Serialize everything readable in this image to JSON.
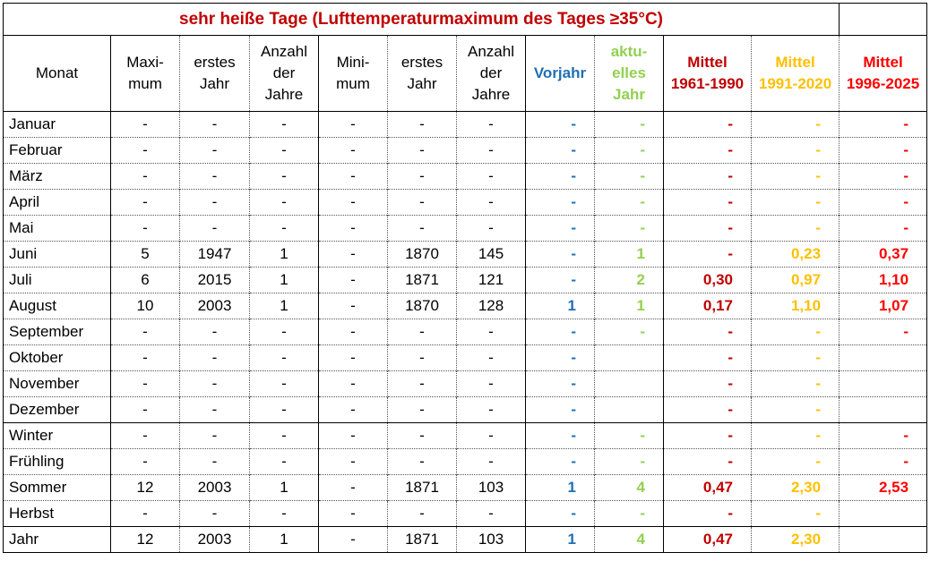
{
  "title": "sehr heiße Tage (Lufttemperaturmaximum des Tages ≥35°C)",
  "table": {
    "headers": [
      "Monat",
      "Maxi-\nmum",
      "erstes\nJahr",
      "Anzahl\nder\nJahre",
      "Mini-\nmum",
      "erstes\nJahr",
      "Anzahl\nder\nJahre",
      "Vorjahr",
      "aktu-\nelles\nJahr",
      "Mittel\n1961-1990",
      "Mittel\n1991-2020",
      "Mittel\n1996-2025"
    ],
    "rows": [
      [
        "Januar",
        "-",
        "-",
        "-",
        "-",
        "-",
        "-",
        "-",
        "-",
        "-",
        "-",
        "-"
      ],
      [
        "Februar",
        "-",
        "-",
        "-",
        "-",
        "-",
        "-",
        "-",
        "-",
        "-",
        "-",
        "-"
      ],
      [
        "März",
        "-",
        "-",
        "-",
        "-",
        "-",
        "-",
        "-",
        "-",
        "-",
        "-",
        "-"
      ],
      [
        "April",
        "-",
        "-",
        "-",
        "-",
        "-",
        "-",
        "-",
        "-",
        "-",
        "-",
        "-"
      ],
      [
        "Mai",
        "-",
        "-",
        "-",
        "-",
        "-",
        "-",
        "-",
        "-",
        "-",
        "-",
        "-"
      ],
      [
        "Juni",
        "5",
        "1947",
        "1",
        "-",
        "1870",
        "145",
        "-",
        "1",
        "-",
        "0,23",
        "0,37"
      ],
      [
        "Juli",
        "6",
        "2015",
        "1",
        "-",
        "1871",
        "121",
        "-",
        "2",
        "0,30",
        "0,97",
        "1,10"
      ],
      [
        "August",
        "10",
        "2003",
        "1",
        "-",
        "1870",
        "128",
        "1",
        "1",
        "0,17",
        "1,10",
        "1,07"
      ],
      [
        "September",
        "-",
        "-",
        "-",
        "-",
        "-",
        "-",
        "-",
        "-",
        "-",
        "-",
        "-"
      ],
      [
        "Oktober",
        "-",
        "-",
        "-",
        "-",
        "-",
        "-",
        "-",
        null,
        "-",
        "-",
        null
      ],
      [
        "November",
        "-",
        "-",
        "-",
        "-",
        "-",
        "-",
        "-",
        null,
        "-",
        "-",
        null
      ],
      [
        "Dezember",
        "-",
        "-",
        "-",
        "-",
        "-",
        "-",
        "-",
        null,
        "-",
        "-",
        null
      ],
      [
        "Winter",
        "-",
        "-",
        "-",
        "-",
        "-",
        "-",
        "-",
        "-",
        "-",
        "-",
        "-"
      ],
      [
        "Frühling",
        "-",
        "-",
        "-",
        "-",
        "-",
        "-",
        "-",
        "-",
        "-",
        "-",
        "-"
      ],
      [
        "Sommer",
        "12",
        "2003",
        "1",
        "-",
        "1871",
        "103",
        "1",
        "4",
        "0,47",
        "2,30",
        "2,53"
      ],
      [
        "Herbst",
        "-",
        "-",
        "-",
        "-",
        "-",
        "-",
        "-",
        "-",
        "-",
        "-",
        null
      ],
      [
        "Jahr",
        "12",
        "2003",
        "1",
        "-",
        "1871",
        "103",
        "1",
        "4",
        "0,47",
        "2,30",
        null
      ]
    ]
  }
}
